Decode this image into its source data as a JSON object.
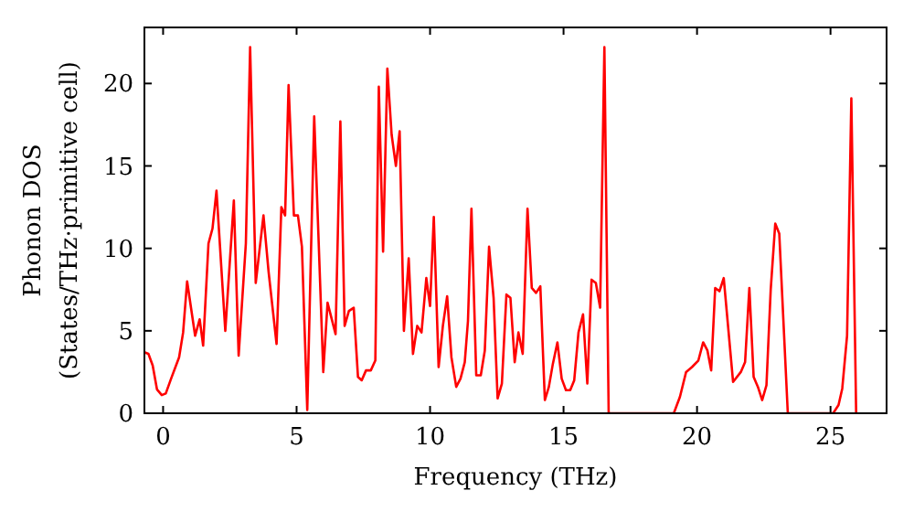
{
  "chart_data": {
    "type": "line",
    "xlabel": "Frequency (THz)",
    "ylabel": "Phonon DOS\n(States/THz·primitive cell)",
    "xlim": [
      -0.7,
      27.1
    ],
    "ylim": [
      0,
      23.4
    ],
    "xticks": [
      0,
      5,
      10,
      15,
      20,
      25
    ],
    "yticks": [
      0,
      5,
      10,
      15,
      20
    ],
    "grid": false,
    "marker": "none",
    "line_style": "solid",
    "series": [
      {
        "color": "#ff0000",
        "x": [
          -0.7,
          -0.55,
          -0.39,
          -0.23,
          -0.05,
          0.1,
          0.3,
          0.6,
          0.75,
          0.9,
          1.2,
          1.37,
          1.5,
          1.7,
          1.85,
          2.0,
          2.33,
          2.65,
          2.83,
          3.1,
          3.26,
          3.47,
          3.76,
          3.95,
          4.25,
          4.43,
          4.57,
          4.7,
          4.9,
          5.05,
          5.2,
          5.4,
          5.66,
          6.0,
          6.16,
          6.46,
          6.64,
          6.8,
          6.96,
          7.14,
          7.3,
          7.44,
          7.6,
          7.78,
          7.95,
          8.08,
          8.24,
          8.4,
          8.56,
          8.72,
          8.86,
          9.02,
          9.2,
          9.36,
          9.52,
          9.68,
          9.86,
          10.0,
          10.14,
          10.32,
          10.48,
          10.64,
          10.8,
          10.98,
          11.14,
          11.3,
          11.42,
          11.55,
          11.73,
          11.9,
          12.05,
          12.21,
          12.38,
          12.53,
          12.69,
          12.86,
          13.01,
          13.17,
          13.31,
          13.47,
          13.65,
          13.81,
          13.97,
          14.13,
          14.3,
          14.45,
          14.6,
          14.77,
          14.93,
          15.09,
          15.25,
          15.4,
          15.56,
          15.73,
          15.89,
          16.05,
          16.21,
          16.37,
          16.53,
          16.69,
          19.13,
          19.36,
          19.59,
          19.81,
          20.05,
          20.23,
          20.39,
          20.53,
          20.68,
          20.84,
          21.0,
          21.35,
          21.64,
          21.8,
          21.96,
          22.12,
          22.28,
          22.44,
          22.6,
          22.76,
          22.93,
          23.08,
          23.4,
          25.1,
          25.3,
          25.44,
          25.62,
          25.78,
          25.96
        ],
        "values": [
          3.7,
          3.6,
          2.9,
          1.45,
          1.1,
          1.2,
          2.1,
          3.4,
          4.9,
          8.0,
          4.7,
          5.7,
          4.1,
          10.3,
          11.2,
          13.5,
          5.0,
          12.9,
          3.5,
          10.3,
          22.2,
          7.9,
          12.0,
          8.6,
          4.2,
          12.5,
          12.0,
          19.9,
          12.0,
          12.0,
          10.1,
          0.2,
          18.0,
          2.5,
          6.7,
          4.8,
          17.7,
          5.3,
          6.2,
          6.4,
          2.2,
          2.0,
          2.6,
          2.6,
          3.2,
          19.8,
          9.8,
          20.9,
          16.9,
          15.0,
          17.1,
          5.0,
          9.4,
          3.6,
          5.3,
          4.9,
          8.2,
          6.5,
          11.9,
          2.8,
          5.3,
          7.1,
          3.4,
          1.6,
          2.1,
          3.1,
          5.6,
          12.4,
          2.3,
          2.3,
          3.8,
          10.1,
          7.0,
          0.9,
          1.8,
          7.2,
          7.0,
          3.1,
          4.9,
          3.6,
          12.4,
          7.6,
          7.3,
          7.7,
          0.8,
          1.6,
          3.0,
          4.3,
          2.1,
          1.4,
          1.4,
          2.0,
          4.9,
          6.0,
          1.8,
          8.1,
          7.9,
          6.4,
          22.2,
          0,
          0,
          1.0,
          2.5,
          2.8,
          3.2,
          4.3,
          3.8,
          2.6,
          7.6,
          7.4,
          8.2,
          1.9,
          2.5,
          3.1,
          7.6,
          2.2,
          1.6,
          0.8,
          1.7,
          7.5,
          11.5,
          10.9,
          0,
          0,
          0.5,
          1.5,
          4.7,
          19.1,
          0
        ]
      }
    ]
  }
}
